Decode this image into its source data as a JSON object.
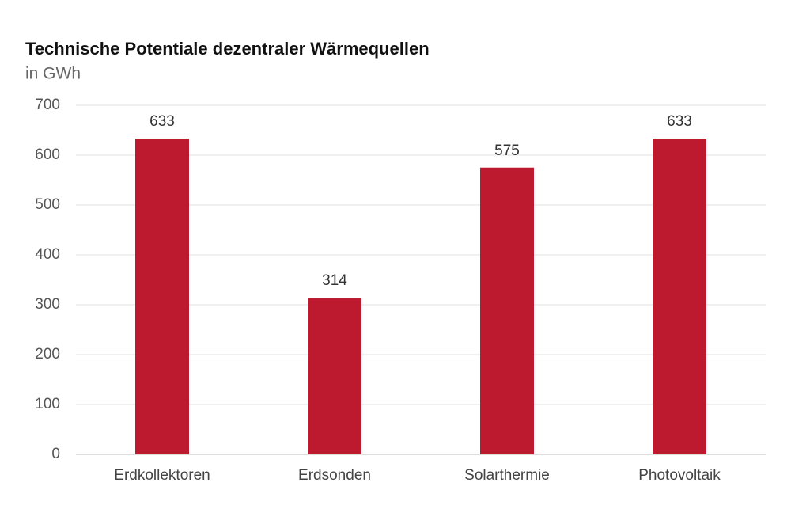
{
  "chart_data": {
    "type": "bar",
    "title": "Technische Potentiale dezentraler Wärmequellen",
    "subtitle": "in GWh",
    "categories": [
      "Erdkollektoren",
      "Erdsonden",
      "Solarthermie",
      "Photovoltaik"
    ],
    "values": [
      633,
      314,
      575,
      633
    ],
    "color": "#be1a2f",
    "ylim": [
      0,
      700
    ],
    "yticks": [
      0,
      100,
      200,
      300,
      400,
      500,
      600,
      700
    ],
    "grid": true
  }
}
